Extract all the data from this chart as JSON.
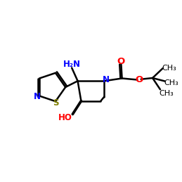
{
  "black": "#000000",
  "blue": "#0000FF",
  "red": "#FF0000",
  "olive": "#808000",
  "bg": "#FFFFFF",
  "lw": 1.8,
  "fontsize": 8.5
}
